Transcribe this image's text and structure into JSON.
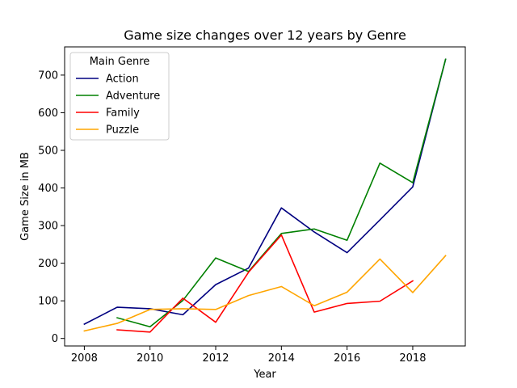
{
  "chart_data": {
    "type": "line",
    "title": "Game size changes over 12 years by Genre",
    "xlabel": "Year",
    "ylabel": "Game Size in MB",
    "xlim": [
      2007.4,
      2019.6
    ],
    "ylim": [
      -20,
      775
    ],
    "x_ticks": [
      2008,
      2010,
      2012,
      2014,
      2016,
      2018
    ],
    "y_ticks": [
      0,
      100,
      200,
      300,
      400,
      500,
      600,
      700
    ],
    "grid": false,
    "legend": {
      "title": "Main Genre",
      "placement": "top-left"
    },
    "series": [
      {
        "name": "Action",
        "color": "#000080",
        "x": [
          2008,
          2009,
          2010,
          2011,
          2012,
          2013,
          2014,
          2015,
          2016,
          2017,
          2018,
          2019
        ],
        "y": [
          38,
          83,
          79,
          63,
          143,
          187,
          347,
          283,
          228,
          315,
          403,
          742
        ]
      },
      {
        "name": "Adventure",
        "color": "#008000",
        "x": [
          2009,
          2010,
          2011,
          2012,
          2013,
          2014,
          2015,
          2016,
          2017,
          2018,
          2019
        ],
        "y": [
          55,
          31,
          101,
          214,
          178,
          279,
          291,
          261,
          466,
          414,
          742
        ]
      },
      {
        "name": "Family",
        "color": "#ff0000",
        "x": [
          2009,
          2010,
          2011,
          2012,
          2013,
          2014,
          2015,
          2016,
          2017,
          2018
        ],
        "y": [
          23,
          17,
          107,
          43,
          176,
          275,
          70,
          93,
          99,
          153
        ]
      },
      {
        "name": "Puzzle",
        "color": "#ffa500",
        "x": [
          2008,
          2009,
          2010,
          2011,
          2012,
          2013,
          2014,
          2015,
          2016,
          2017,
          2018,
          2019
        ],
        "y": [
          20,
          40,
          77,
          79,
          77,
          114,
          138,
          87,
          123,
          211,
          122,
          220
        ]
      }
    ]
  }
}
